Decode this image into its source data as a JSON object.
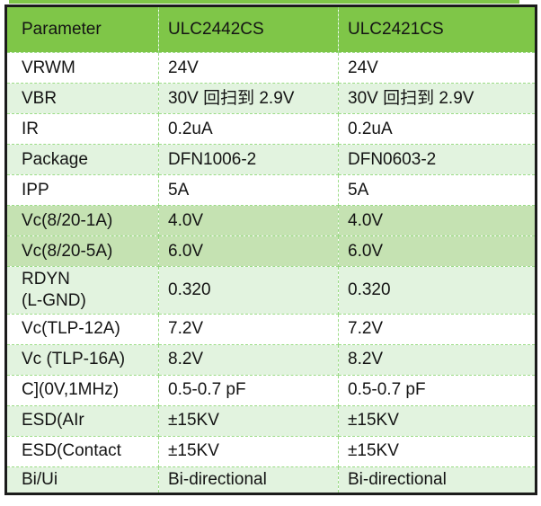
{
  "table": {
    "columns": [
      "Parameter",
      "ULC2442CS",
      "ULC2421CS"
    ],
    "rows": [
      {
        "param": "VRWM",
        "v1": "24V",
        "v2": "24V",
        "shade": "white"
      },
      {
        "param": "VBR",
        "v1": "30V 回扫到 2.9V",
        "v2": "30V 回扫到 2.9V",
        "shade": "light"
      },
      {
        "param": "IR",
        "v1": "0.2uA",
        "v2": "0.2uA",
        "shade": "white"
      },
      {
        "param": "Package",
        "v1": "DFN1006-2",
        "v2": "DFN0603-2",
        "shade": "light"
      },
      {
        "param": "IPP",
        "v1": "5A",
        "v2": "5A",
        "shade": "white"
      },
      {
        "param": "Vc(8/20-1A)",
        "v1": "4.0V",
        "v2": "4.0V",
        "shade": "green"
      },
      {
        "param": "Vc(8/20-5A)",
        "v1": "6.0V",
        "v2": "6.0V",
        "shade": "green"
      },
      {
        "param": "RDYN\n(L-GND)",
        "v1": "0.320",
        "v2": "0.320",
        "shade": "light"
      },
      {
        "param": "Vc(TLP-12A)",
        "v1": "7.2V",
        "v2": "7.2V",
        "shade": "white"
      },
      {
        "param": "Vc (TLP-16A)",
        "v1": "8.2V",
        "v2": "8.2V",
        "shade": "light"
      },
      {
        "param": "C](0V,1MHz)",
        "v1": "0.5-0.7 pF",
        "v2": "0.5-0.7 pF",
        "shade": "white"
      },
      {
        "param": "ESD(AIr",
        "v1": "±15KV",
        "v2": "±15KV",
        "shade": "light"
      },
      {
        "param": "ESD(Contact",
        "v1": "±15KV",
        "v2": "±15KV",
        "shade": "white"
      },
      {
        "param": "Bi/Ui",
        "v1": "Bi-directional",
        "v2": "Bi-directional",
        "shade": "light"
      }
    ],
    "colors": {
      "header_bg": "#7fc648",
      "row_light": "#e2f3df",
      "row_highlight": "#c5e2b2",
      "grid": "#9bdc86",
      "border": "#1b1b1b",
      "text": "#141414"
    }
  }
}
